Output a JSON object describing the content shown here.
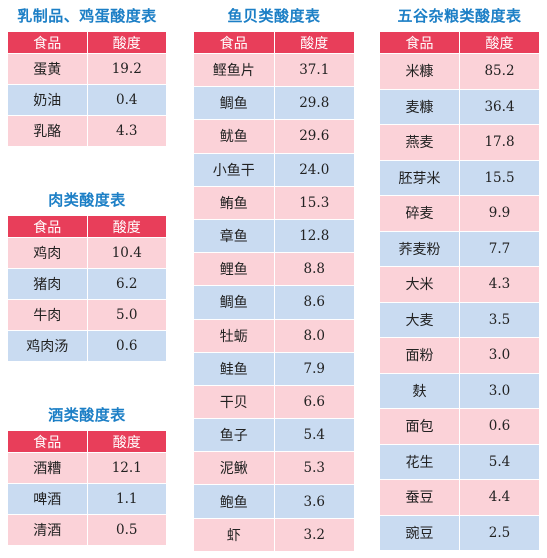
{
  "tables": [
    {
      "title": "乳制品、鸡蛋酸度表",
      "headers": [
        "食品",
        "酸度"
      ],
      "rows": [
        [
          "蛋黄",
          "19.2"
        ],
        [
          "奶油",
          "0.4"
        ],
        [
          "乳酪",
          "4.3"
        ]
      ]
    },
    {
      "title": "肉类酸度表",
      "headers": [
        "食品",
        "酸度"
      ],
      "rows": [
        [
          "鸡肉",
          "10.4"
        ],
        [
          "猪肉",
          "6.2"
        ],
        [
          "牛肉",
          "5.0"
        ],
        [
          "鸡肉汤",
          "0.6"
        ]
      ]
    },
    {
      "title": "酒类酸度表",
      "headers": [
        "食品",
        "酸度"
      ],
      "rows": [
        [
          "酒糟",
          "12.1"
        ],
        [
          "啤酒",
          "1.1"
        ],
        [
          "清酒",
          "0.5"
        ]
      ]
    },
    {
      "title": "鱼贝类酸度表",
      "headers": [
        "食品",
        "酸度"
      ],
      "rows": [
        [
          "鲣鱼片",
          "37.1"
        ],
        [
          "鲷鱼",
          "29.8"
        ],
        [
          "鱿鱼",
          "29.6"
        ],
        [
          "小鱼干",
          "24.0"
        ],
        [
          "鲔鱼",
          "15.3"
        ],
        [
          "章鱼",
          "12.8"
        ],
        [
          "鲤鱼",
          "8.8"
        ],
        [
          "鲷鱼",
          "8.6"
        ],
        [
          "牡蛎",
          "8.0"
        ],
        [
          "鲑鱼",
          "7.9"
        ],
        [
          "干贝",
          "6.6"
        ],
        [
          "鱼子",
          "5.4"
        ],
        [
          "泥鳅",
          "5.3"
        ],
        [
          "鲍鱼",
          "3.6"
        ],
        [
          "虾",
          "3.2"
        ]
      ]
    },
    {
      "title": "五谷杂粮类酸度表",
      "headers": [
        "食品",
        "酸度"
      ],
      "rows": [
        [
          "米糠",
          "85.2"
        ],
        [
          "麦糠",
          "36.4"
        ],
        [
          "燕麦",
          "17.8"
        ],
        [
          "胚芽米",
          "15.5"
        ],
        [
          "碎麦",
          "9.9"
        ],
        [
          "荞麦粉",
          "7.7"
        ],
        [
          "大米",
          "4.3"
        ],
        [
          "大麦",
          "3.5"
        ],
        [
          "面粉",
          "3.0"
        ],
        [
          "麸",
          "3.0"
        ],
        [
          "面包",
          "0.6"
        ],
        [
          "花生",
          "5.4"
        ],
        [
          "蚕豆",
          "4.4"
        ],
        [
          "豌豆",
          "2.5"
        ]
      ]
    }
  ]
}
